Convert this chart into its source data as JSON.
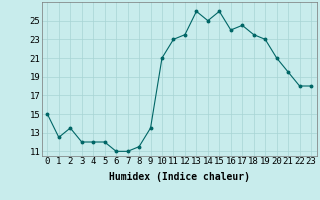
{
  "x": [
    0,
    1,
    2,
    3,
    4,
    5,
    6,
    7,
    8,
    9,
    10,
    11,
    12,
    13,
    14,
    15,
    16,
    17,
    18,
    19,
    20,
    21,
    22,
    23
  ],
  "y": [
    15,
    12.5,
    13.5,
    12,
    12,
    12,
    11,
    11,
    11.5,
    13.5,
    21,
    23,
    23.5,
    26,
    25,
    26,
    24,
    24.5,
    23.5,
    23,
    21,
    19.5,
    18,
    18
  ],
  "line_color": "#006666",
  "marker_color": "#006666",
  "bg_color": "#c8ecec",
  "grid_color": "#a8d4d4",
  "xlabel": "Humidex (Indice chaleur)",
  "xlim": [
    -0.5,
    23.5
  ],
  "ylim": [
    10.5,
    27
  ],
  "yticks": [
    11,
    13,
    15,
    17,
    19,
    21,
    23,
    25
  ],
  "xticks": [
    0,
    1,
    2,
    3,
    4,
    5,
    6,
    7,
    8,
    9,
    10,
    11,
    12,
    13,
    14,
    15,
    16,
    17,
    18,
    19,
    20,
    21,
    22,
    23
  ],
  "xlabel_fontsize": 7,
  "tick_fontsize": 6.5
}
